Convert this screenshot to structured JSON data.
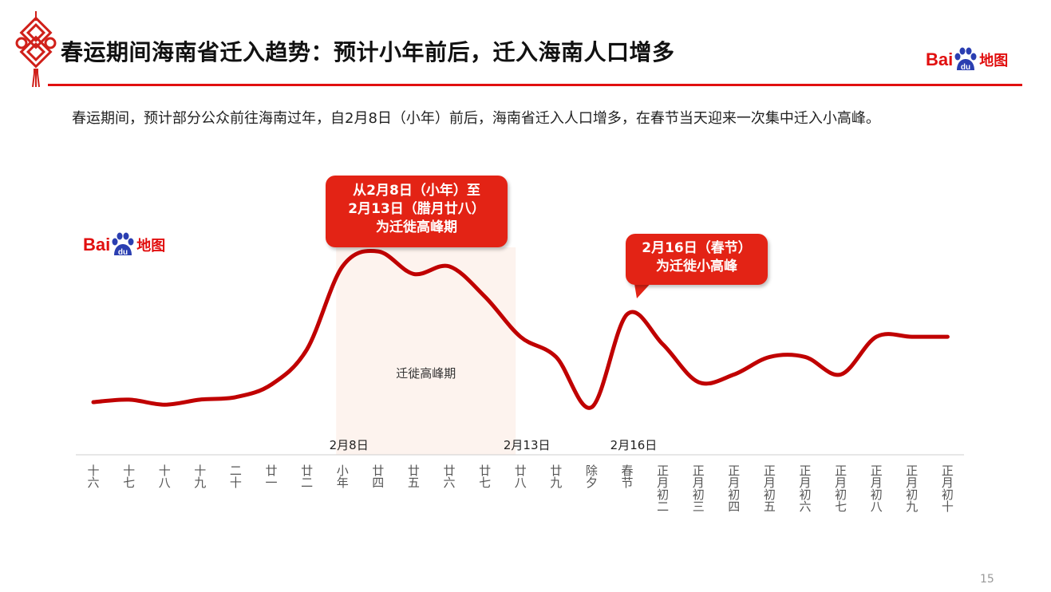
{
  "header": {
    "title": "春运期间海南省迁入趋势：预计小年前后，迁入海南人口增多",
    "subtitle": "春运期间，预计部分公众前往海南过年，自2月8日（小年）前后，海南省迁入人口增多，在春节当天迎来一次集中迁入小高峰。",
    "accent_color": "#e10f0f"
  },
  "logo": {
    "brand_text": "Bai",
    "paw_text": "du",
    "map_text": "地图",
    "icon": "baidu-paw-icon"
  },
  "callouts": {
    "peak_period": {
      "line1": "从2月8日（小年）至",
      "line2": "2月13日（腊月廿八）",
      "line3": "为迁徙高峰期"
    },
    "spring_festival": {
      "line1": "2月16日（春节）",
      "line2": "为迁徙小高峰"
    }
  },
  "chart_data": {
    "type": "line",
    "title": "",
    "xlabel": "",
    "ylabel": "",
    "categories": [
      "十六",
      "十七",
      "十八",
      "十九",
      "二十",
      "廿一",
      "廿二",
      "小年",
      "廿四",
      "廿五",
      "廿六",
      "廿七",
      "廿八",
      "廿九",
      "除夕",
      "春节",
      "正月初二",
      "正月初三",
      "正月初四",
      "正月初五",
      "正月初六",
      "正月初七",
      "正月初八",
      "正月初九",
      "正月初十"
    ],
    "series": [
      {
        "name": "",
        "color": "#c00000",
        "values": [
          13,
          14,
          12,
          14,
          15,
          20,
          34,
          67,
          73,
          64,
          67,
          55,
          39,
          31,
          11,
          48,
          36,
          21,
          24,
          31,
          31,
          24,
          39,
          39,
          39
        ]
      }
    ],
    "ylim": [
      0,
      100
    ],
    "y_axis_visible": false,
    "grid": false,
    "shaded_region": {
      "label": "迁徙高峰期",
      "from_index": 7,
      "to_index": 12,
      "color": "#fdf3ee"
    },
    "date_markers": [
      {
        "label": "2月8日",
        "index": 7
      },
      {
        "label": "2月13日",
        "index": 12
      },
      {
        "label": "2月16日",
        "index": 15
      }
    ]
  },
  "footer": {
    "page_number": "15"
  }
}
